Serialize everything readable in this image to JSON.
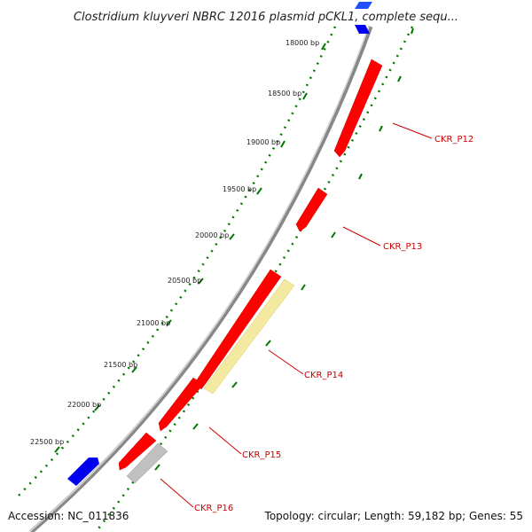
{
  "title": "Clostridium kluyveri NBRC 12016 plasmid pCKL1, complete sequ...",
  "footer": {
    "accession": "Accession: NC_011836",
    "summary": "Topology: circular; Length: 59,182 bp; Genes: 55"
  },
  "scale": {
    "tick_labels": [
      "18000 bp",
      "18500 bp",
      "19000 bp",
      "19500 bp",
      "20000 bp",
      "20500 bp",
      "21000 bp",
      "21500 bp",
      "22000 bp",
      "22500 bp"
    ]
  },
  "genes": [
    {
      "name": "CKR_P12",
      "strand": "reverse",
      "color": "#ff0000"
    },
    {
      "name": "CKR_P13",
      "strand": "reverse",
      "color": "#ff0000"
    },
    {
      "name": "CKR_P14",
      "strand": "reverse",
      "color": "#ff0000"
    },
    {
      "name": "CKR_P15",
      "strand": "reverse",
      "color": "#ff0000"
    },
    {
      "name": "CKR_P16",
      "strand": "reverse",
      "color": "#ff0000"
    }
  ],
  "legend_colors": {
    "cds_forward": "#0000ee",
    "cds_reverse": "#ff0000",
    "feature_yellow": "#f3e9a0",
    "feature_gray": "#c0c0c0",
    "backbone": "#888888",
    "ticks": "#007700"
  }
}
